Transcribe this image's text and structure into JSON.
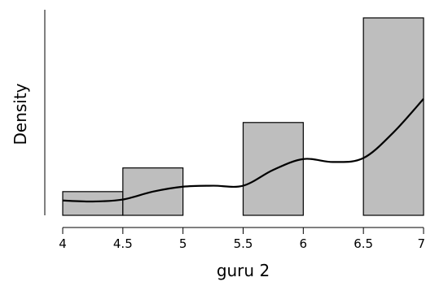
{
  "chart_data": {
    "type": "bar",
    "xlabel": "guru 2",
    "ylabel": "Density",
    "xlim": [
      4,
      7
    ],
    "ylim": [
      0,
      1.0
    ],
    "x_ticks": [
      "4",
      "4.5",
      "5",
      "5.5",
      "6",
      "6.5",
      "7"
    ],
    "y_ticks": [],
    "grid": false,
    "colors": {
      "bar_fill": "#bebebe",
      "bar_stroke": "#000000",
      "curve": "#000000"
    },
    "bins": [
      {
        "x_start": 4.0,
        "x_end": 4.5,
        "density": 0.12
      },
      {
        "x_start": 4.5,
        "x_end": 5.0,
        "density": 0.24
      },
      {
        "x_start": 5.0,
        "x_end": 5.5,
        "density": 0.0
      },
      {
        "x_start": 5.5,
        "x_end": 6.0,
        "density": 0.47
      },
      {
        "x_start": 6.0,
        "x_end": 6.5,
        "density": 0.0
      },
      {
        "x_start": 6.5,
        "x_end": 7.0,
        "density": 1.0
      }
    ],
    "density_curve": {
      "x": [
        4.0,
        4.25,
        4.5,
        4.75,
        5.0,
        5.25,
        5.5,
        5.75,
        6.0,
        6.25,
        6.5,
        6.75,
        7.0
      ],
      "y": [
        0.075,
        0.07,
        0.08,
        0.12,
        0.145,
        0.15,
        0.15,
        0.23,
        0.285,
        0.27,
        0.29,
        0.42,
        0.59
      ]
    }
  }
}
